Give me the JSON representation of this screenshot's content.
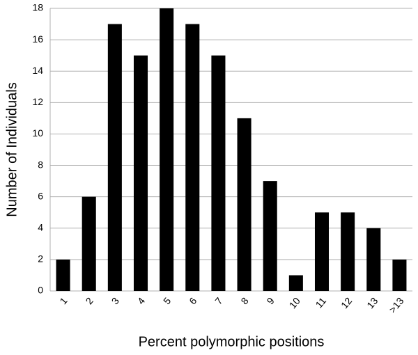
{
  "chart_data": {
    "type": "bar",
    "x_label": "Percent polymorphic positions",
    "y_label": "Number of Individuals",
    "categories": [
      "1",
      "2",
      "3",
      "4",
      "5",
      "6",
      "7",
      "8",
      "9",
      "10",
      "11",
      "12",
      "13",
      ">13"
    ],
    "values": [
      2,
      6,
      17,
      15,
      18,
      17,
      15,
      11,
      7,
      1,
      5,
      5,
      4,
      2
    ],
    "color": "#000000",
    "ylim": [
      0,
      18
    ],
    "yticks": [
      0,
      2,
      4,
      6,
      8,
      10,
      12,
      14,
      16,
      18
    ],
    "grid": true
  }
}
